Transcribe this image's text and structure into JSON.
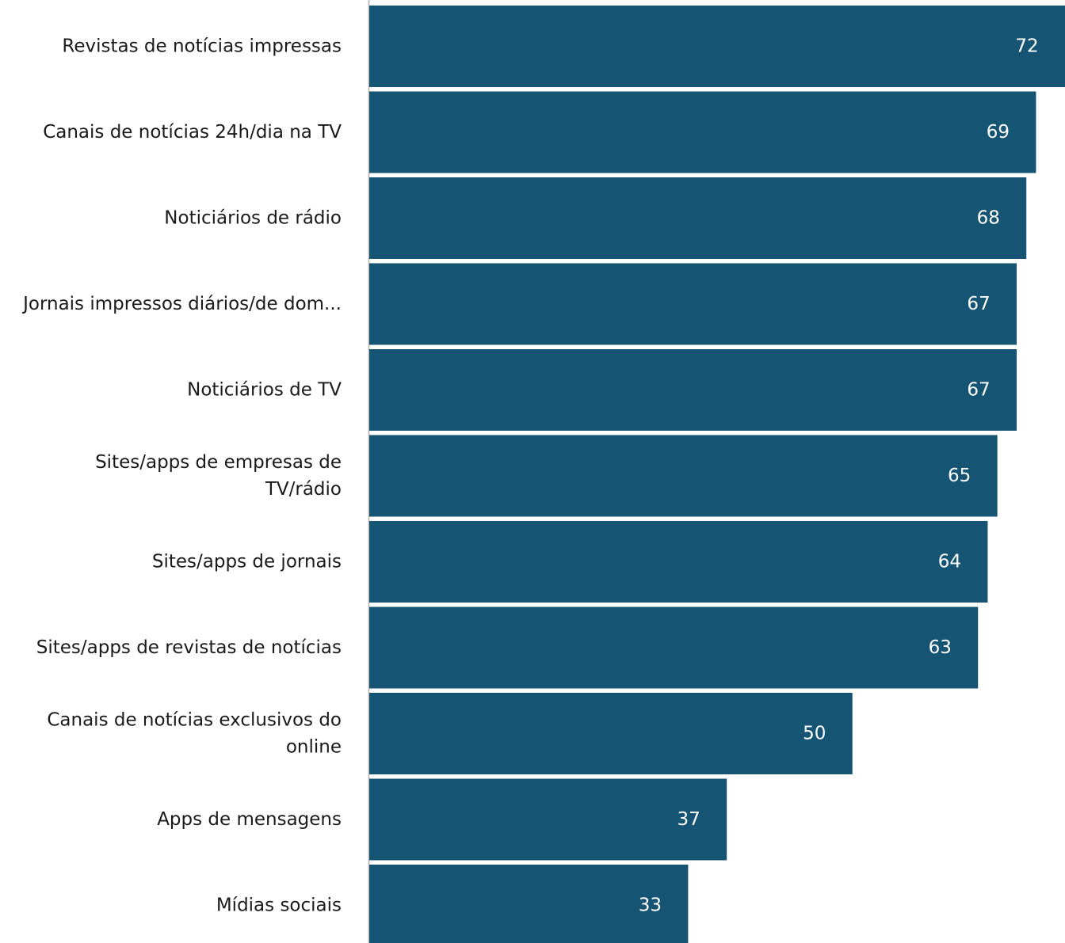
{
  "chart_data": {
    "type": "bar",
    "orientation": "horizontal",
    "categories": [
      [
        "Revistas de notícias impressas"
      ],
      [
        "Canais de notícias 24h/dia na TV"
      ],
      [
        "Noticiários de rádio"
      ],
      [
        "Jornais impressos diários/de dom..."
      ],
      [
        "Noticiários de TV"
      ],
      [
        "Sites/apps de empresas de",
        "TV/rádio"
      ],
      [
        "Sites/apps de jornais"
      ],
      [
        "Sites/apps de revistas de notícias"
      ],
      [
        "Canais de notícias exclusivos do",
        "online"
      ],
      [
        "Apps de mensagens"
      ],
      [
        "Mídias sociais"
      ]
    ],
    "values": [
      72,
      69,
      68,
      67,
      67,
      65,
      64,
      63,
      50,
      37,
      33
    ],
    "value_labels": [
      "72",
      "69",
      "68",
      "67",
      "67",
      "65",
      "64",
      "63",
      "50",
      "37",
      "33"
    ],
    "xlim": [
      0,
      72
    ],
    "grid": false,
    "legend": "none",
    "colors": {
      "bar": "#155573",
      "label": "#1a1a1a",
      "value_label": "#ffffff",
      "axis": "#bfbfbf"
    }
  }
}
